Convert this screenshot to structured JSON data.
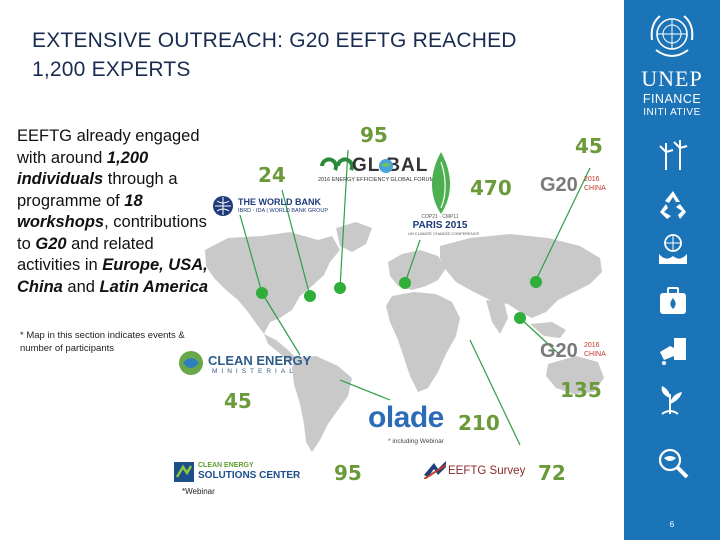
{
  "slide": {
    "title_line1": "EXTENSIVE OUTREACH: G20 EEFTG REACHED",
    "title_line2": "1,200 EXPERTS",
    "body": {
      "p1": "EEFTG already engaged with around ",
      "b1": "1,200 individuals",
      "p2": " through a programme of ",
      "b2": "18 workshops",
      "p3": ", contributions to ",
      "b3": "G20",
      "p4": " and related activities in ",
      "b4": "Europe, USA, China",
      "p5": " and ",
      "b5": "Latin America"
    },
    "map_note": "* Map in this section indicates events & number of participants",
    "including_webinar": "* including Webinar",
    "webinar_note": "*Webinar",
    "page_number": "6"
  },
  "participants": {
    "eeglobal": "95",
    "g20_china_top": "45",
    "world_bank": "24",
    "paris": "470",
    "clean_energy_ministerial": "45",
    "g20_china_bottom": "135",
    "olade": "210",
    "solutions_center": "95",
    "eeftg_survey": "72"
  },
  "logos": {
    "eeglobal_main": "GL   BAL",
    "eeglobal_sub": "2016 ENERGY EFFICIENCY GLOBAL FORUM",
    "world_bank_main": "THE WORLD BANK",
    "world_bank_sub": "IBRD · IDA | WORLD BANK GROUP",
    "paris_top": "COP21 · CMP11",
    "paris_main": "PARIS 2015",
    "paris_sub": "UN CLIMATE CHANGE CONFERENCE",
    "g20_text": "G20",
    "g20_year": "2016",
    "g20_country": "CHINA",
    "cem_main": "CLEAN ENERGY",
    "cem_sub": "MINISTERIAL",
    "olade": "olade",
    "solutions_line1": "CLEAN ENERGY",
    "solutions_line2": "SOLUTIONS CENTER",
    "survey": "EEFTG Survey"
  },
  "sidebar": {
    "brand_unep": "UNEP",
    "brand_finance": "FINANCE",
    "brand_initiative": "INITI ATIVE",
    "icons": [
      "wind-turbine-icon",
      "recycle-icon",
      "people-globe-icon",
      "first-aid-kit-icon",
      "water-tap-icon",
      "plant-icon",
      "magnifier-globe-icon"
    ]
  },
  "colors": {
    "sidebar": "#1c74b8",
    "number_green": "#6b9a3a",
    "marker_green": "#2fae3a",
    "title_navy": "#1a2b50",
    "map_gray": "#c9c9c9"
  }
}
